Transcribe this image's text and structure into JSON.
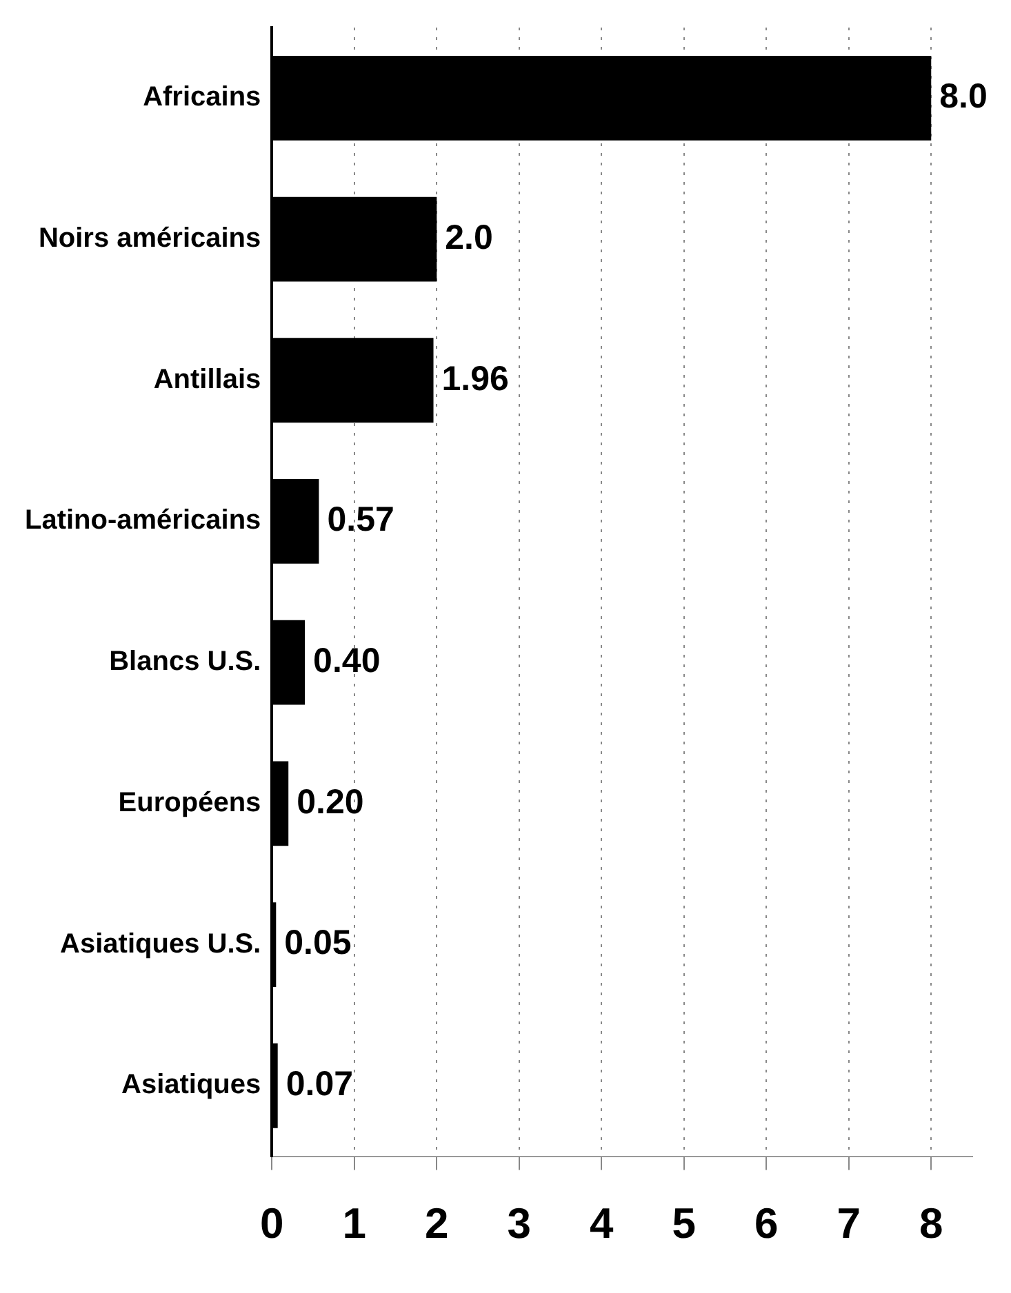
{
  "chart_data": {
    "type": "bar",
    "orientation": "horizontal",
    "categories": [
      "Africains",
      "Noirs américains",
      "Antillais",
      "Latino-américains",
      "Blancs U.S.",
      "Européens",
      "Asiatiques U.S.",
      "Asiatiques"
    ],
    "values": [
      8.0,
      2.0,
      1.96,
      0.57,
      0.4,
      0.2,
      0.05,
      0.07
    ],
    "value_labels": [
      "8.0",
      "2.0",
      "1.96",
      "0.57",
      "0.40",
      "0.20",
      "0.05",
      "0.07"
    ],
    "color": "#000000",
    "xlim": [
      0,
      8.5
    ],
    "xticks": [
      0,
      1,
      2,
      3,
      4,
      5,
      6,
      7,
      8
    ],
    "grid": "x",
    "legend": false
  }
}
